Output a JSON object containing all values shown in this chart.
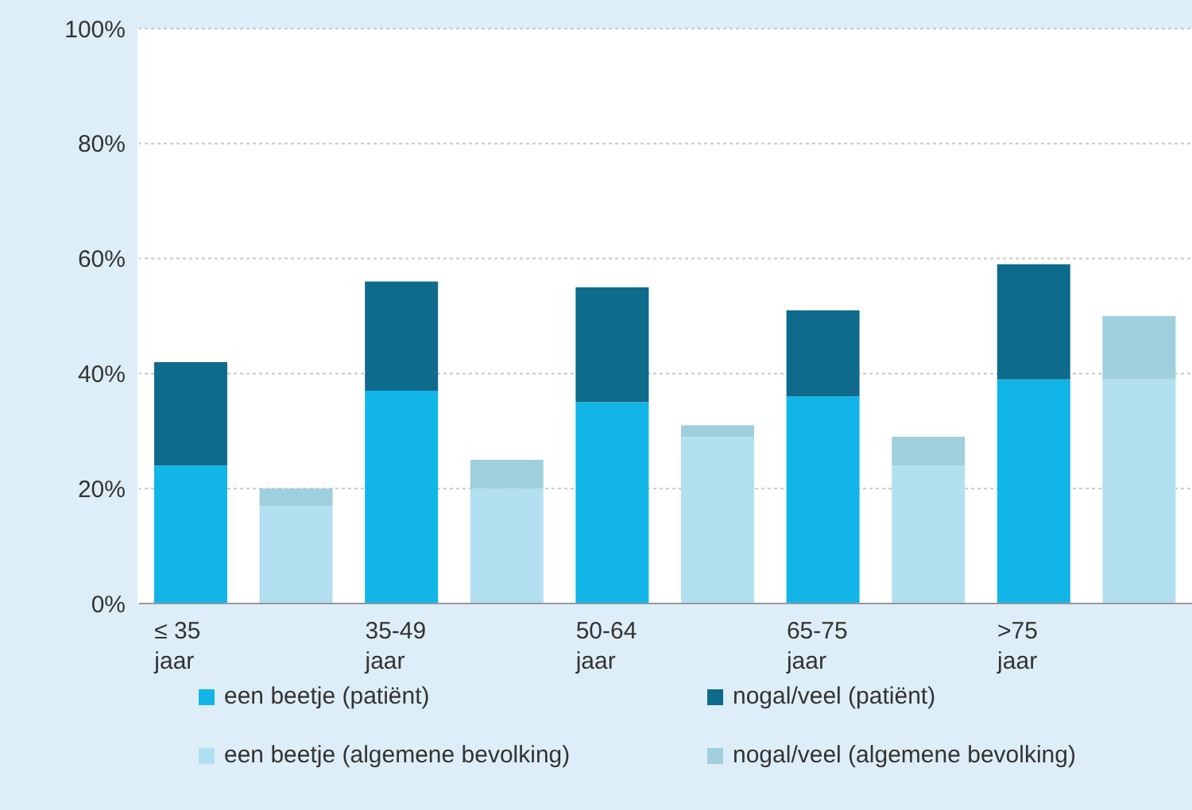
{
  "chart_data": {
    "type": "bar",
    "stacked": true,
    "categories": [
      "≤ 35\njaar",
      null,
      "35-49\njaar",
      null,
      "50-64\njaar",
      null,
      "65-75\njaar",
      null,
      ">75\njaar",
      null
    ],
    "series": [
      {
        "name": "een beetje (patiënt)",
        "color": "#12b5e8",
        "values": [
          24,
          null,
          37,
          null,
          35,
          null,
          36,
          null,
          39,
          null
        ]
      },
      {
        "name": "een beetje (algemene bevolking)",
        "color": "#b3e0f0",
        "values": [
          null,
          17,
          null,
          20,
          null,
          29,
          null,
          24,
          null,
          39
        ]
      },
      {
        "name": "nogal/veel (patiënt)",
        "color": "#0e6b8c",
        "values": [
          18,
          null,
          19,
          null,
          20,
          null,
          15,
          null,
          20,
          null
        ]
      },
      {
        "name": "nogal/veel (algemene bevolking)",
        "color": "#9fcfdc",
        "values": [
          null,
          3,
          null,
          5,
          null,
          2,
          null,
          5,
          null,
          11
        ]
      }
    ],
    "ylim": [
      0,
      100
    ],
    "yticks": [
      {
        "value": 0,
        "label": "0%"
      },
      {
        "value": 20,
        "label": "20%"
      },
      {
        "value": 40,
        "label": "40%"
      },
      {
        "value": 60,
        "label": "60%"
      },
      {
        "value": 80,
        "label": "80%"
      },
      {
        "value": 100,
        "label": "100%"
      }
    ],
    "grid": "y",
    "legend": "bottom"
  }
}
